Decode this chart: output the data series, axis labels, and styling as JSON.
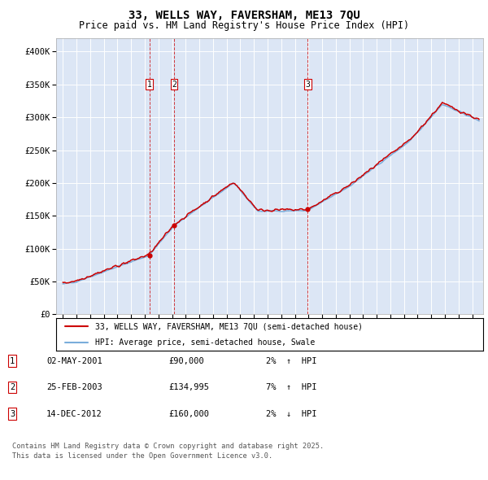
{
  "title": "33, WELLS WAY, FAVERSHAM, ME13 7QU",
  "subtitle": "Price paid vs. HM Land Registry's House Price Index (HPI)",
  "legend_line1": "33, WELLS WAY, FAVERSHAM, ME13 7QU (semi-detached house)",
  "legend_line2": "HPI: Average price, semi-detached house, Swale",
  "footnote1": "Contains HM Land Registry data © Crown copyright and database right 2025.",
  "footnote2": "This data is licensed under the Open Government Licence v3.0.",
  "transactions": [
    {
      "label": "1",
      "date": "02-MAY-2001",
      "price": 90000,
      "hpi_pct": "2%",
      "direction": "↑",
      "x": 2001.33
    },
    {
      "label": "2",
      "date": "25-FEB-2003",
      "price": 134995,
      "hpi_pct": "7%",
      "direction": "↑",
      "x": 2003.14
    },
    {
      "label": "3",
      "date": "14-DEC-2012",
      "price": 160000,
      "hpi_pct": "2%",
      "direction": "↓",
      "x": 2012.95
    }
  ],
  "hpi_color": "#7aaddb",
  "price_color": "#cc0000",
  "plot_bg": "#dce6f5",
  "ylim": [
    0,
    420000
  ],
  "xlim": [
    1994.5,
    2025.8
  ],
  "yticks": [
    0,
    50000,
    100000,
    150000,
    200000,
    250000,
    300000,
    350000,
    400000
  ],
  "ytick_labels": [
    "£0",
    "£50K",
    "£100K",
    "£150K",
    "£200K",
    "£250K",
    "£300K",
    "£350K",
    "£400K"
  ],
  "xticks": [
    1995,
    1996,
    1997,
    1998,
    1999,
    2000,
    2001,
    2002,
    2003,
    2004,
    2005,
    2006,
    2007,
    2008,
    2009,
    2010,
    2011,
    2012,
    2013,
    2014,
    2015,
    2016,
    2017,
    2018,
    2019,
    2020,
    2021,
    2022,
    2023,
    2024,
    2025
  ]
}
